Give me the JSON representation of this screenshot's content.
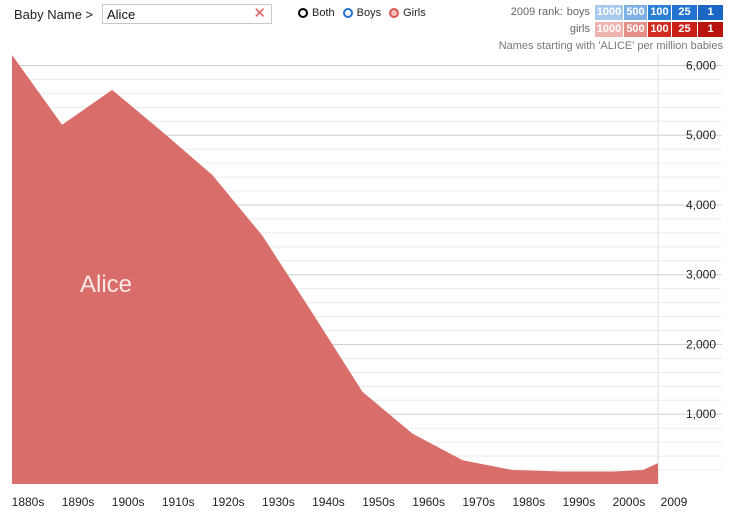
{
  "header": {
    "breadcrumb": "Baby Name >",
    "search_value": "Alice",
    "clear_icon": "close-icon",
    "radio_options": [
      "Both",
      "Boys",
      "Girls"
    ],
    "radio_selected": "Girls"
  },
  "rank_legend": {
    "title": "2009 rank:",
    "boys_label": "boys",
    "girls_label": "girls",
    "boys_cells": [
      {
        "label": "1000",
        "color": "#a9c9ee"
      },
      {
        "label": "500",
        "color": "#7eb0e6"
      },
      {
        "label": "100",
        "color": "#2b7fd4"
      },
      {
        "label": "25",
        "color": "#2273d1"
      },
      {
        "label": "1",
        "color": "#1a66c2"
      }
    ],
    "girls_cells": [
      {
        "label": "1000",
        "color": "#f0b3ad"
      },
      {
        "label": "500",
        "color": "#e58f88"
      },
      {
        "label": "100",
        "color": "#d22c22"
      },
      {
        "label": "25",
        "color": "#c91f17"
      },
      {
        "label": "1",
        "color": "#b9150e"
      }
    ]
  },
  "subtitle": "Names starting with 'ALICE' per million babies",
  "chart_data": {
    "type": "area",
    "series": [
      {
        "name": "Alice",
        "color": "#d96d69",
        "x": [
          1880,
          1890,
          1900,
          1910,
          1920,
          1930,
          1940,
          1950,
          1960,
          1970,
          1980,
          1990,
          2000,
          2006,
          2009
        ],
        "values": [
          6150,
          5150,
          5650,
          5050,
          4430,
          3560,
          2450,
          1320,
          720,
          340,
          200,
          180,
          180,
          200,
          300
        ]
      }
    ],
    "x_tick_labels": [
      "1880s",
      "1890s",
      "1900s",
      "1910s",
      "1920s",
      "1930s",
      "1940s",
      "1950s",
      "1960s",
      "1970s",
      "1980s",
      "1990s",
      "2000s",
      "2009"
    ],
    "y_ticks": [
      1000,
      2000,
      3000,
      4000,
      5000,
      6000
    ],
    "y_tick_labels": [
      "1,000",
      "2,000",
      "3,000",
      "4,000",
      "5,000",
      "6,000"
    ],
    "ylim": [
      0,
      6150
    ],
    "grid": true,
    "xlabel": "",
    "ylabel": ""
  }
}
